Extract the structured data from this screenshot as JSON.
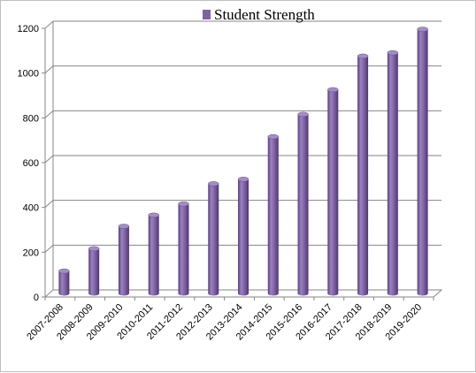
{
  "chart_data": {
    "type": "bar",
    "title": "",
    "xlabel": "",
    "ylabel": "",
    "categories": [
      "2007-2008",
      "2008-2009",
      "2009-2010",
      "2010-2011",
      "2011-2012",
      "2012-2013",
      "2013-2014",
      "2014-2015",
      "2015-2016",
      "2016-2017",
      "2017-2018",
      "2018-2019",
      "2019-2020"
    ],
    "series": [
      {
        "name": "Student Strength",
        "color": "#8064a2",
        "values": [
          100,
          200,
          300,
          350,
          400,
          490,
          510,
          700,
          800,
          910,
          1060,
          1075,
          1180
        ]
      }
    ],
    "ylim": [
      0,
      1200
    ],
    "yticks": [
      0,
      200,
      400,
      600,
      800,
      1000,
      1200
    ],
    "grid": true,
    "legend_position": "top"
  }
}
